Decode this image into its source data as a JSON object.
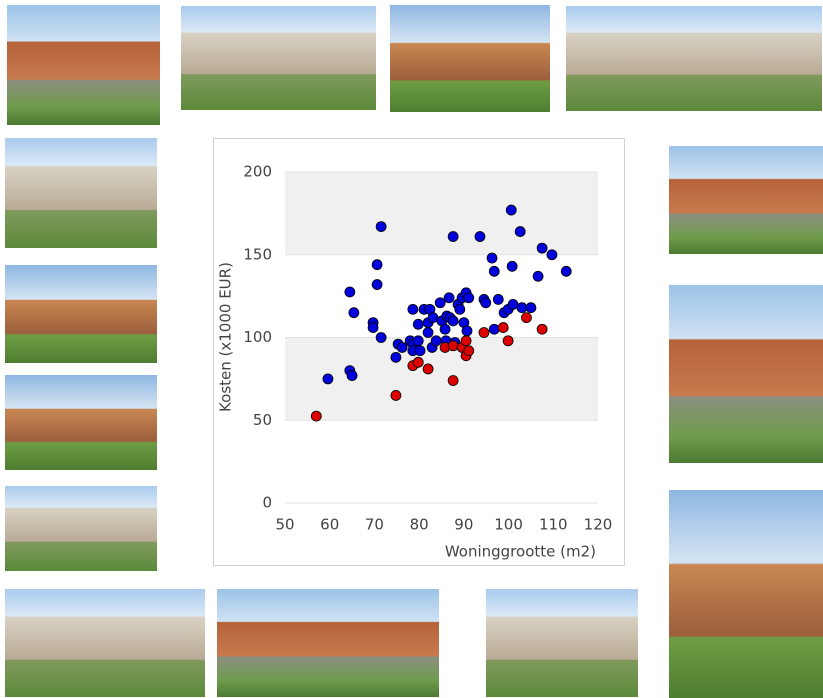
{
  "chart_data": {
    "type": "scatter",
    "x_label": "Woninggrootte (m2)",
    "y_label": "Kosten (x1000 EUR)",
    "xlim": [
      50,
      120
    ],
    "xticks": [
      50,
      60,
      70,
      80,
      90,
      100,
      110,
      120
    ],
    "ylim": [
      0,
      200
    ],
    "yticks": [
      0,
      50,
      100,
      150,
      200
    ],
    "grid": true,
    "series": [
      {
        "color": "#0000dd",
        "x": [
          59.6,
          64.5,
          65,
          64.5,
          65.4,
          69.7,
          69.7,
          70.6,
          70.6,
          71.5,
          71.5,
          74.8,
          75.3,
          76.2,
          78,
          78.6,
          78.6,
          78.6,
          79.8,
          79.8,
          80.2,
          81.1,
          82,
          82,
          82.4,
          82.9,
          83.1,
          83.8,
          84.7,
          85.1,
          85.8,
          86,
          86.2,
          86.7,
          86.9,
          87.6,
          87.6,
          88,
          88.7,
          89.1,
          89.6,
          90,
          90.5,
          90.7,
          91.1,
          93.6,
          94.5,
          94.9,
          96.3,
          96.8,
          96.8,
          97.7,
          99,
          99.9,
          100.6,
          100.8,
          101,
          102.6,
          103,
          105,
          106.6,
          107.5,
          109.7,
          112.9
        ],
        "values": [
          75,
          80,
          77,
          127.5,
          115,
          109,
          106,
          144,
          132,
          167,
          100,
          88,
          96,
          94,
          98,
          117,
          96,
          92,
          108,
          98,
          92,
          117,
          109,
          103,
          117,
          94,
          112,
          98,
          121,
          110,
          105,
          98,
          113,
          124,
          112,
          161,
          110,
          97,
          120,
          117,
          124,
          109,
          127,
          104,
          124,
          161,
          123,
          121,
          148,
          140,
          105,
          123,
          115,
          117,
          177,
          143,
          120,
          164,
          118,
          118,
          137,
          154,
          150,
          140
        ]
      },
      {
        "color": "#dd0000",
        "x": [
          57,
          74.8,
          78.6,
          79.8,
          82,
          85.8,
          87.6,
          87.6,
          89.6,
          90.5,
          90.5,
          91.1,
          94.5,
          98.8,
          99.9,
          104,
          107.5
        ],
        "values": [
          52.5,
          65,
          83,
          85,
          81,
          94,
          74,
          95,
          94,
          98,
          89,
          92,
          103,
          106,
          98,
          112,
          105
        ]
      }
    ]
  }
}
